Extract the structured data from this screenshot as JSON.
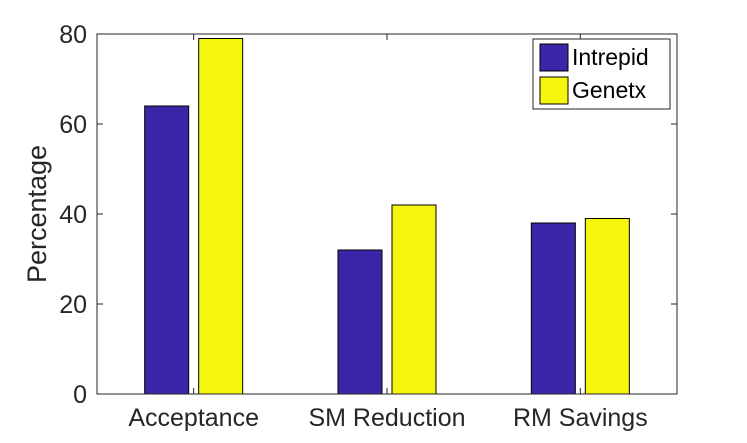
{
  "chart_data": {
    "type": "bar",
    "categories": [
      "Acceptance",
      "SM Reduction",
      "RM Savings"
    ],
    "series": [
      {
        "name": "Intrepid",
        "color": "#3a27a8",
        "values": [
          64,
          32,
          38
        ]
      },
      {
        "name": "Genetx",
        "color": "#f5f50e",
        "values": [
          79,
          42,
          39
        ]
      }
    ],
    "title": "",
    "xlabel": "",
    "ylabel": "Percentage",
    "ylim": [
      0,
      80
    ],
    "yticks": [
      0,
      20,
      40,
      60,
      80
    ],
    "grid": false,
    "legend_position": "top-right"
  }
}
